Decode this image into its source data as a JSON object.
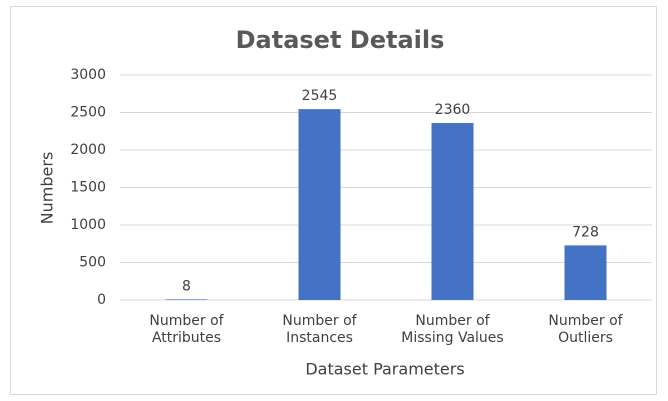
{
  "chart_data": {
    "type": "bar",
    "title": "Dataset Details",
    "categories": [
      "Number of Attributes",
      "Number of Instances",
      "Number of Missing Values",
      "Number of Outliers"
    ],
    "values": [
      8,
      2545,
      2360,
      728
    ],
    "color": "#4472c4",
    "x_label": "Dataset Parameters",
    "y_label": "Numbers",
    "ylim": [
      0,
      3000
    ],
    "yticks": [
      0,
      500,
      1000,
      1500,
      2000,
      2500,
      3000
    ],
    "grid": true,
    "data_labels": true
  }
}
